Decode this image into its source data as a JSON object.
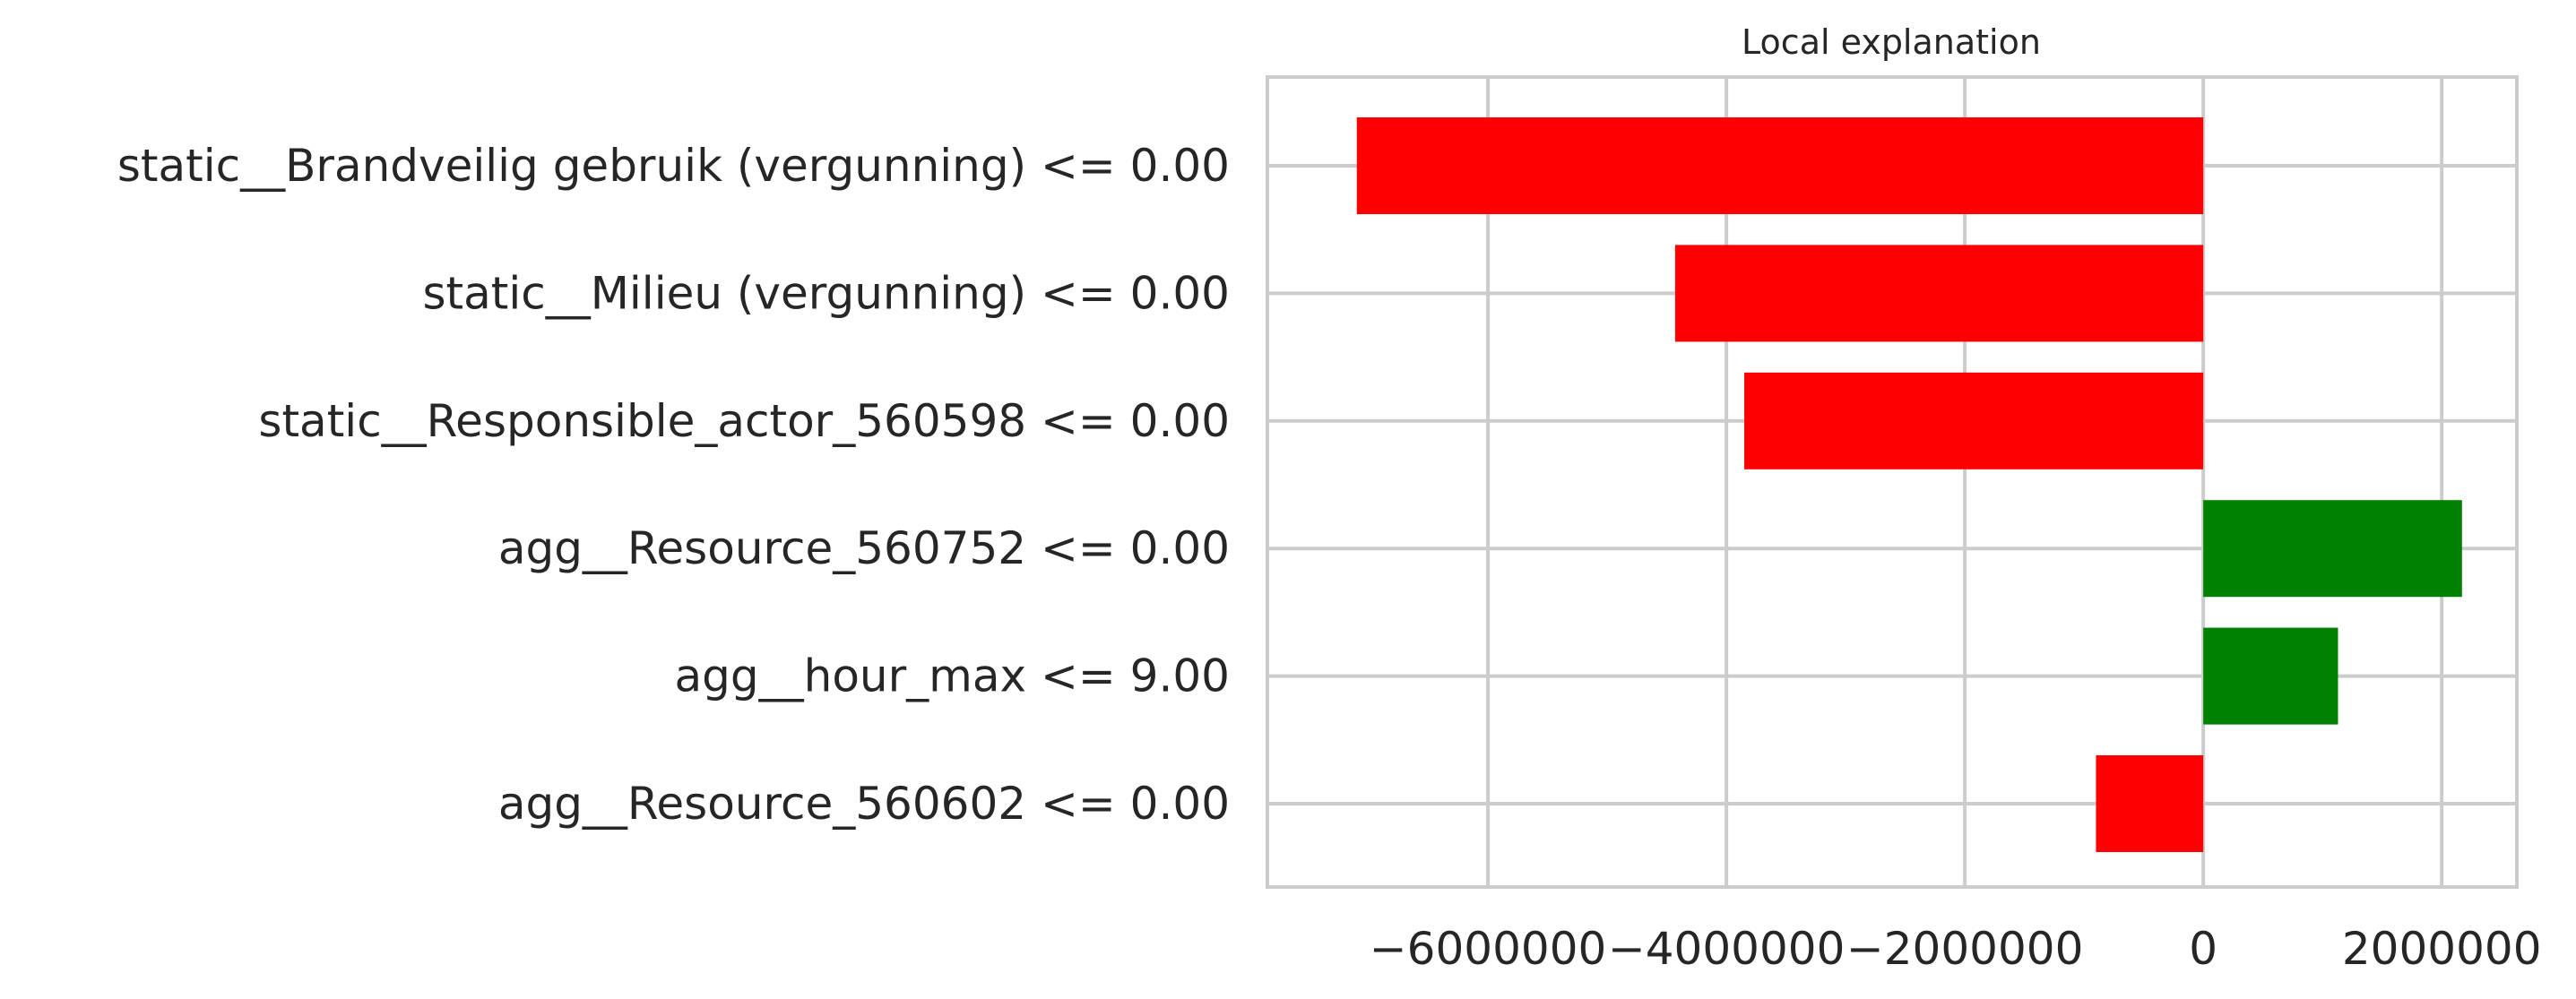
{
  "chart_data": {
    "type": "bar",
    "orientation": "horizontal",
    "title": "Local explanation",
    "xlabel": "",
    "ylabel": "",
    "categories": [
      "static__Brandveilig gebruik (vergunning) <= 0.00",
      "static__Milieu (vergunning) <= 0.00",
      "static__Responsible_actor_560598 <= 0.00",
      "agg__Resource_560752 <= 0.00",
      "agg__hour_max <= 9.00",
      "agg__Resource_560602 <= 0.00"
    ],
    "values": [
      -7100000,
      -4430000,
      -3850000,
      2170000,
      1130000,
      -900000
    ],
    "xlim": [
      -7850000,
      2630000
    ],
    "xticks": [
      -6000000,
      -4000000,
      -2000000,
      0,
      2000000
    ],
    "xtick_labels": [
      "−6000000",
      "−4000000",
      "−2000000",
      "0",
      "2000000"
    ],
    "grid": true,
    "colors": {
      "positive": "#008000",
      "negative": "#ff0000"
    }
  }
}
